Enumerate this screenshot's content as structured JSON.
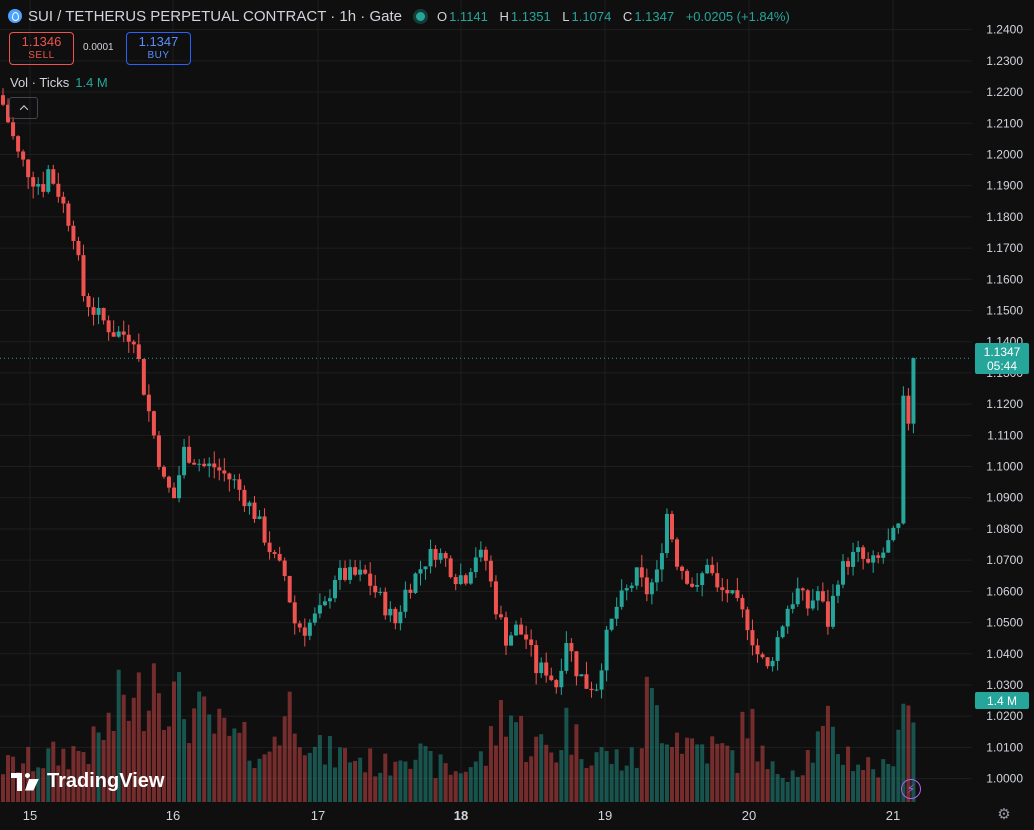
{
  "header": {
    "symbol_title": "SUI / TETHERUS PERPETUAL CONTRACT · 1h · Gate",
    "ohlc": {
      "o_label": "O",
      "o": "1.1141",
      "h_label": "H",
      "h": "1.1351",
      "l_label": "L",
      "l": "1.1074",
      "c_label": "C",
      "c": "1.1347",
      "change": "+0.0205 (+1.84%)"
    }
  },
  "trade": {
    "sell_price": "1.1346",
    "sell_label": "SELL",
    "spread": "0.0001",
    "buy_price": "1.1347",
    "buy_label": "BUY"
  },
  "volume_legend": {
    "label": "Vol · Ticks",
    "value": "1.4 M"
  },
  "last_price": {
    "value": "1.1347",
    "countdown": "05:44"
  },
  "volume_tag": "1.4 M",
  "brand": "TradingView",
  "colors": {
    "up": "#26a69a",
    "down": "#ef5350",
    "background": "#0f0f0f",
    "grid": "#1e1e1e"
  },
  "icons": [
    "sui-coin-icon",
    "live-dot-icon",
    "chevron-up-icon",
    "tradingview-logo-icon",
    "lightning-icon",
    "gear-icon"
  ],
  "chart_data": {
    "type": "candlestick",
    "interval": "1h",
    "y_axis": {
      "ticks": [
        "1.0000",
        "1.0100",
        "1.0200",
        "1.0300",
        "1.0400",
        "1.0500",
        "1.0600",
        "1.0700",
        "1.0800",
        "1.0900",
        "1.1000",
        "1.1100",
        "1.1200",
        "1.1300",
        "1.1400",
        "1.1500",
        "1.1600",
        "1.1700",
        "1.1800",
        "1.1900",
        "1.2000",
        "1.2100",
        "1.2200",
        "1.2300",
        "1.2400"
      ],
      "range": [
        0.9925,
        1.2495
      ]
    },
    "x_axis": {
      "ticks": [
        "15",
        "16",
        "17",
        "18",
        "19",
        "20",
        "21"
      ],
      "bold_tick": "18"
    },
    "grid": true,
    "price_path": [
      [
        0,
        1.216
      ],
      [
        3,
        1.2
      ],
      [
        6,
        1.192
      ],
      [
        8,
        1.19
      ],
      [
        9,
        1.195
      ],
      [
        11,
        1.188
      ],
      [
        14,
        1.175
      ],
      [
        16,
        1.155
      ],
      [
        18,
        1.15
      ],
      [
        22,
        1.143
      ],
      [
        26,
        1.142
      ],
      [
        28,
        1.125
      ],
      [
        30,
        1.11
      ],
      [
        32,
        1.095
      ],
      [
        34,
        1.09
      ],
      [
        36,
        1.105
      ],
      [
        40,
        1.1
      ],
      [
        42,
        1.1
      ],
      [
        46,
        1.095
      ],
      [
        50,
        1.085
      ],
      [
        54,
        1.07
      ],
      [
        56,
        1.065
      ],
      [
        58,
        1.05
      ],
      [
        60,
        1.048
      ],
      [
        64,
        1.055
      ],
      [
        66,
        1.065
      ],
      [
        68,
        1.065
      ],
      [
        72,
        1.065
      ],
      [
        76,
        1.055
      ],
      [
        78,
        1.05
      ],
      [
        80,
        1.06
      ],
      [
        82,
        1.065
      ],
      [
        84,
        1.07
      ],
      [
        86,
        1.073
      ],
      [
        88,
        1.07
      ],
      [
        90,
        1.065
      ],
      [
        92,
        1.065
      ],
      [
        94,
        1.072
      ],
      [
        96,
        1.07
      ],
      [
        98,
        1.055
      ],
      [
        100,
        1.045
      ],
      [
        102,
        1.048
      ],
      [
        104,
        1.045
      ],
      [
        106,
        1.035
      ],
      [
        108,
        1.035
      ],
      [
        110,
        1.03
      ],
      [
        112,
        1.045
      ],
      [
        114,
        1.035
      ],
      [
        116,
        1.03
      ],
      [
        118,
        1.03
      ],
      [
        120,
        1.045
      ],
      [
        122,
        1.055
      ],
      [
        124,
        1.06
      ],
      [
        126,
        1.065
      ],
      [
        128,
        1.06
      ],
      [
        130,
        1.065
      ],
      [
        132,
        1.085
      ],
      [
        134,
        1.07
      ],
      [
        136,
        1.065
      ],
      [
        138,
        1.06
      ],
      [
        140,
        1.07
      ],
      [
        142,
        1.06
      ],
      [
        144,
        1.06
      ],
      [
        146,
        1.055
      ],
      [
        148,
        1.05
      ],
      [
        150,
        1.04
      ],
      [
        152,
        1.035
      ],
      [
        154,
        1.045
      ],
      [
        156,
        1.055
      ],
      [
        158,
        1.06
      ],
      [
        160,
        1.055
      ],
      [
        162,
        1.06
      ],
      [
        164,
        1.05
      ],
      [
        166,
        1.065
      ],
      [
        168,
        1.07
      ],
      [
        170,
        1.072
      ],
      [
        172,
        1.068
      ],
      [
        174,
        1.07
      ],
      [
        176,
        1.075
      ],
      [
        178,
        1.08
      ],
      [
        179,
        1.12
      ],
      [
        180,
        1.115
      ],
      [
        181,
        1.1347
      ]
    ],
    "volume_path": [
      [
        0,
        0.35
      ],
      [
        10,
        0.45
      ],
      [
        14,
        0.5
      ],
      [
        18,
        0.55
      ],
      [
        20,
        0.7
      ],
      [
        22,
        0.8
      ],
      [
        24,
        1.1
      ],
      [
        26,
        0.9
      ],
      [
        30,
        1.4
      ],
      [
        34,
        1.0
      ],
      [
        40,
        0.8
      ],
      [
        46,
        0.6
      ],
      [
        50,
        0.55
      ],
      [
        52,
        0.4
      ],
      [
        54,
        0.7
      ],
      [
        58,
        1.0
      ],
      [
        62,
        0.5
      ],
      [
        70,
        0.45
      ],
      [
        76,
        0.35
      ],
      [
        80,
        0.6
      ],
      [
        84,
        0.4
      ],
      [
        90,
        0.3
      ],
      [
        96,
        0.45
      ],
      [
        100,
        1.0
      ],
      [
        104,
        0.6
      ],
      [
        110,
        0.5
      ],
      [
        112,
        0.8
      ],
      [
        114,
        0.6
      ],
      [
        120,
        0.45
      ],
      [
        126,
        0.4
      ],
      [
        128,
        1.0
      ],
      [
        132,
        0.8
      ],
      [
        136,
        0.6
      ],
      [
        140,
        0.55
      ],
      [
        146,
        0.45
      ],
      [
        148,
        0.9
      ],
      [
        152,
        0.3
      ],
      [
        158,
        0.35
      ],
      [
        164,
        0.7
      ],
      [
        166,
        0.55
      ],
      [
        170,
        0.4
      ],
      [
        176,
        0.3
      ],
      [
        179,
        1.15
      ],
      [
        181,
        0.8
      ]
    ]
  }
}
